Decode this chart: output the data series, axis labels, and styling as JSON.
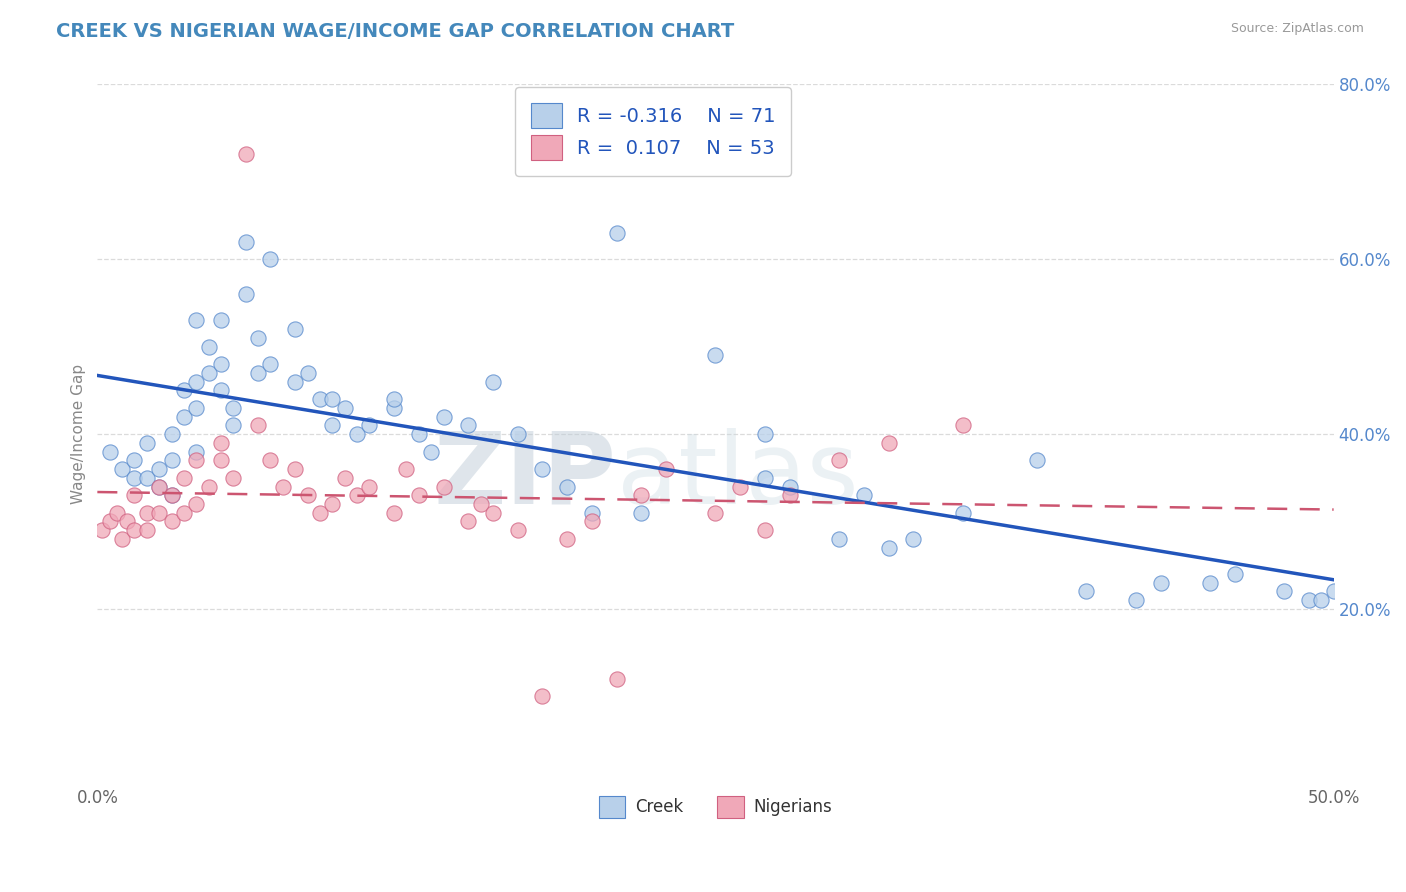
{
  "title": "CREEK VS NIGERIAN WAGE/INCOME GAP CORRELATION CHART",
  "source": "Source: ZipAtlas.com",
  "ylabel": "Wage/Income Gap",
  "xlim": [
    0.0,
    50.0
  ],
  "ylim": [
    0.0,
    80.0
  ],
  "creek_R": -0.316,
  "creek_N": 71,
  "nigerian_R": 0.107,
  "nigerian_N": 53,
  "creek_dot_color": "#b8d0ea",
  "creek_dot_edge": "#5588cc",
  "nigerian_dot_color": "#f0a8b8",
  "nigerian_dot_edge": "#d06080",
  "creek_line_color": "#2255bb",
  "nigerian_line_color": "#cc5570",
  "background_color": "#ffffff",
  "grid_color": "#cccccc",
  "title_color": "#4488bb",
  "creek_scatter_x": [
    0.5,
    1.0,
    1.5,
    1.5,
    2.0,
    2.0,
    2.5,
    2.5,
    3.0,
    3.0,
    3.0,
    3.5,
    3.5,
    4.0,
    4.0,
    4.0,
    4.0,
    4.5,
    4.5,
    5.0,
    5.0,
    5.0,
    5.5,
    5.5,
    6.0,
    6.0,
    6.5,
    6.5,
    7.0,
    7.0,
    8.0,
    8.0,
    8.5,
    9.0,
    9.5,
    9.5,
    10.0,
    10.5,
    11.0,
    12.0,
    12.0,
    13.0,
    13.5,
    14.0,
    15.0,
    16.0,
    17.0,
    18.0,
    19.0,
    20.0,
    21.0,
    22.0,
    25.0,
    27.0,
    27.0,
    28.0,
    30.0,
    31.0,
    32.0,
    33.0,
    35.0,
    38.0,
    40.0,
    42.0,
    43.0,
    45.0,
    46.0,
    48.0,
    49.0,
    49.5,
    50.0
  ],
  "creek_scatter_y": [
    38,
    36,
    35,
    37,
    35,
    39,
    36,
    34,
    37,
    40,
    33,
    45,
    42,
    43,
    46,
    38,
    53,
    50,
    47,
    48,
    53,
    45,
    41,
    43,
    56,
    62,
    51,
    47,
    60,
    48,
    46,
    52,
    47,
    44,
    41,
    44,
    43,
    40,
    41,
    43,
    44,
    40,
    38,
    42,
    41,
    46,
    40,
    36,
    34,
    31,
    63,
    31,
    49,
    40,
    35,
    34,
    28,
    33,
    27,
    28,
    31,
    37,
    22,
    21,
    23,
    23,
    24,
    22,
    21,
    21,
    22
  ],
  "nigerian_scatter_x": [
    0.2,
    0.5,
    0.8,
    1.0,
    1.2,
    1.5,
    1.5,
    2.0,
    2.0,
    2.5,
    2.5,
    3.0,
    3.0,
    3.5,
    3.5,
    4.0,
    4.0,
    4.5,
    5.0,
    5.0,
    5.5,
    6.0,
    6.5,
    7.0,
    7.5,
    8.0,
    8.5,
    9.0,
    9.5,
    10.0,
    10.5,
    11.0,
    12.0,
    12.5,
    13.0,
    14.0,
    15.0,
    15.5,
    16.0,
    17.0,
    18.0,
    19.0,
    20.0,
    21.0,
    22.0,
    23.0,
    25.0,
    26.0,
    27.0,
    28.0,
    30.0,
    32.0,
    35.0
  ],
  "nigerian_scatter_y": [
    29,
    30,
    31,
    28,
    30,
    29,
    33,
    31,
    29,
    34,
    31,
    30,
    33,
    31,
    35,
    32,
    37,
    34,
    39,
    37,
    35,
    72,
    41,
    37,
    34,
    36,
    33,
    31,
    32,
    35,
    33,
    34,
    31,
    36,
    33,
    34,
    30,
    32,
    31,
    29,
    10,
    28,
    30,
    12,
    33,
    36,
    31,
    34,
    29,
    33,
    37,
    39,
    41
  ]
}
